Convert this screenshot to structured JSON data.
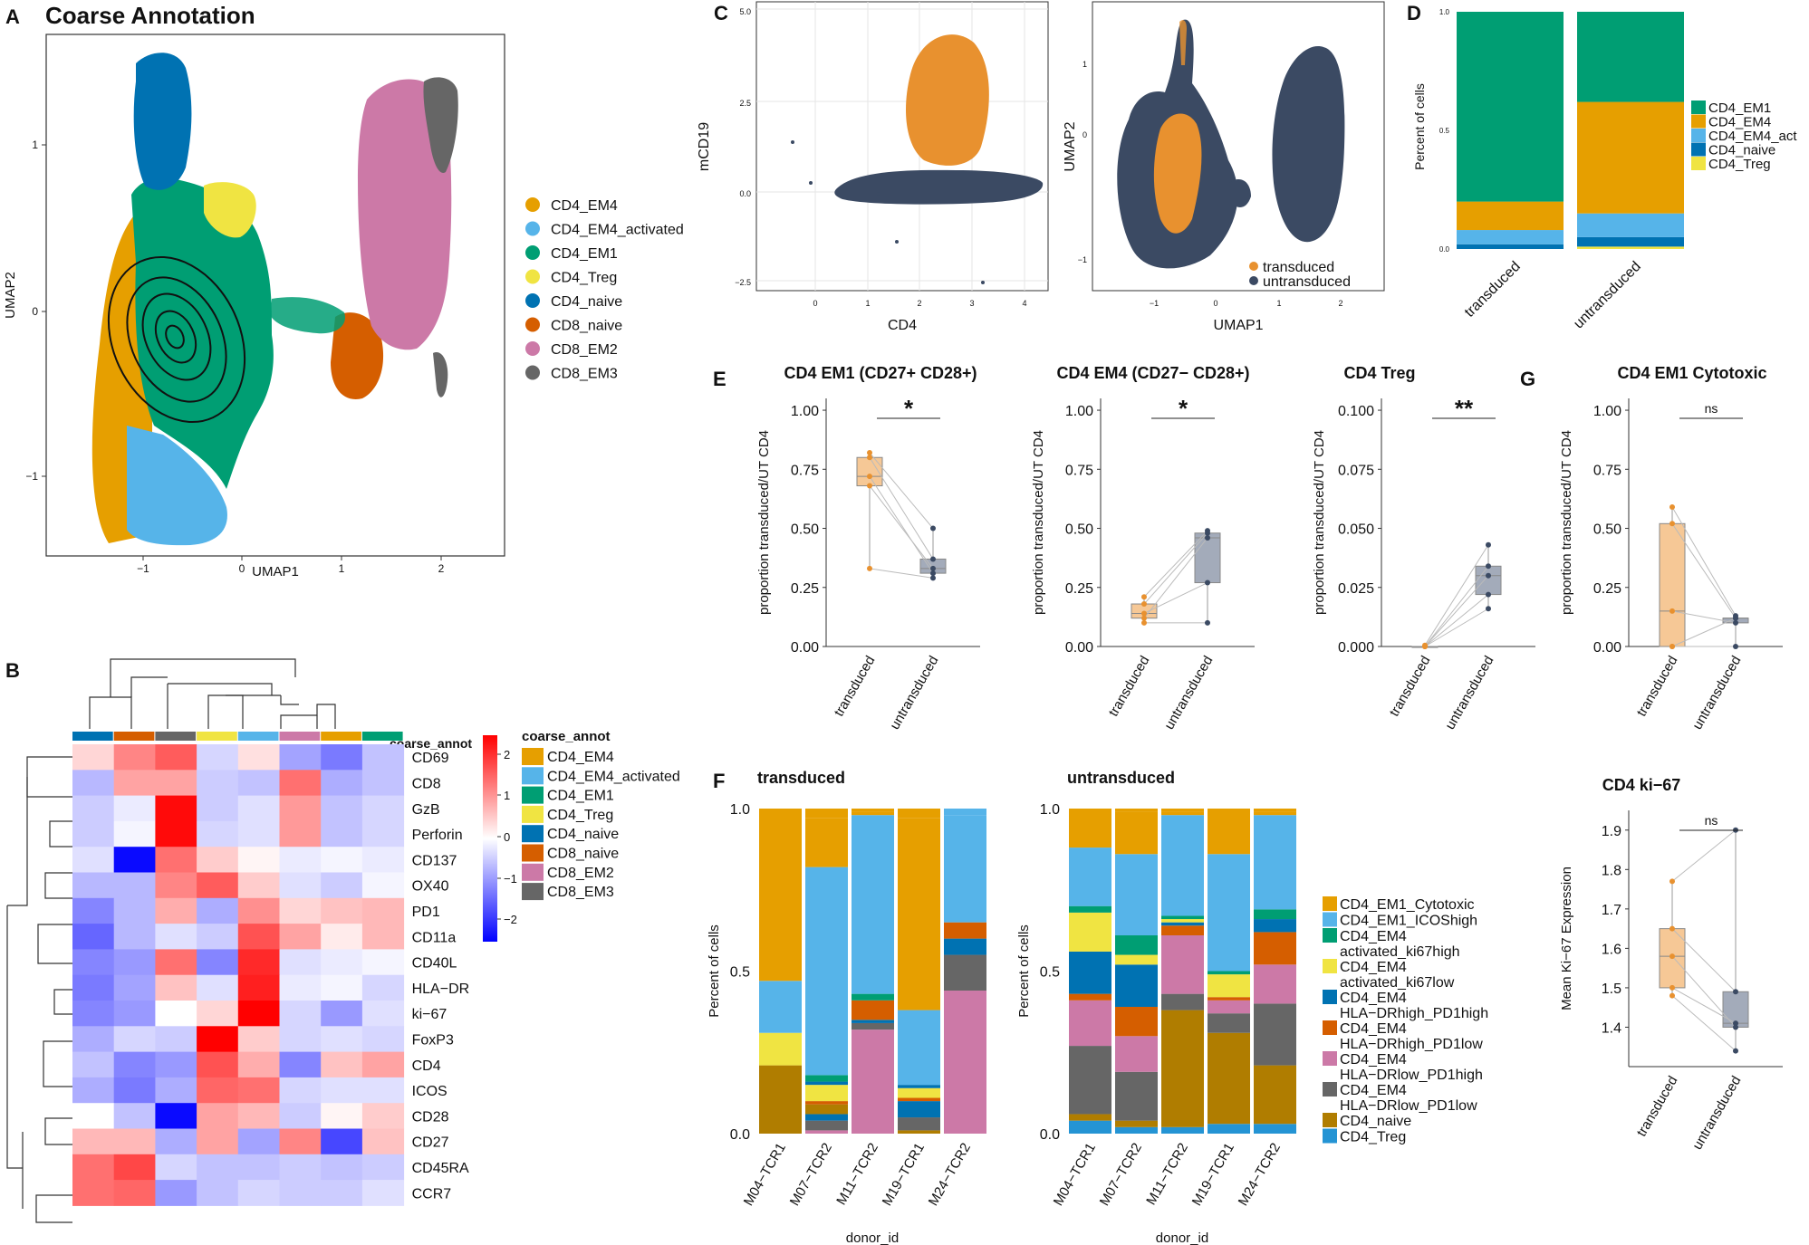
{
  "colors": {
    "CD4_EM4": "#E69F00",
    "CD4_EM4_activated": "#56B4E9",
    "CD4_EM1": "#009E73",
    "CD4_Treg": "#F0E442",
    "CD4_naive": "#0072B2",
    "CD8_naive": "#D55E00",
    "CD8_EM2": "#CC79A7",
    "CD8_EM3": "#666666",
    "naive_brown": "#B07D00",
    "transduced": "#E8912F",
    "untransduced": "#3B4A63"
  },
  "panel_letters": {
    "A": "A",
    "B": "B",
    "C": "C",
    "D": "D",
    "E": "E",
    "F": "F",
    "G": "G"
  },
  "chart_data": [
    {
      "panel": "A",
      "type": "scatter",
      "title": "Coarse Annotation",
      "xlabel": "UMAP1",
      "ylabel": "UMAP2",
      "xticks": [
        "−1",
        "0",
        "1",
        "2"
      ],
      "yticks": [
        "1",
        "0",
        "−1"
      ],
      "legend": [
        "CD4_EM4",
        "CD4_EM4_activated",
        "CD4_EM1",
        "CD4_Treg",
        "CD4_naive",
        "CD8_naive",
        "CD8_EM2",
        "CD8_EM3"
      ]
    },
    {
      "panel": "B",
      "type": "heatmap",
      "legend_title": "coarse_annot",
      "col_header": "coarse_annot",
      "columns": [
        "CD4_naive",
        "CD8_naive",
        "CD8_EM3",
        "CD4_Treg",
        "CD4_EM4_activated",
        "CD8_EM2",
        "CD4_EM4",
        "CD4_EM1"
      ],
      "rows": [
        "CD69",
        "CD8",
        "GzB",
        "Perforin",
        "CD137",
        "OX40",
        "PD1",
        "CD11a",
        "CD40L",
        "HLA−DR",
        "ki−67",
        "FoxP3",
        "CD4",
        "ICOS",
        "CD28",
        "CD27",
        "CD45RA",
        "CCR7"
      ],
      "values": [
        [
          0.4,
          1.2,
          1.6,
          -0.4,
          0.3,
          -0.9,
          -1.3,
          -0.6
        ],
        [
          -0.7,
          0.9,
          0.9,
          -0.5,
          -0.6,
          1.4,
          -0.8,
          -0.6
        ],
        [
          -0.5,
          -0.2,
          2.4,
          -0.5,
          -0.3,
          1.0,
          -0.6,
          -0.4
        ],
        [
          -0.5,
          -0.1,
          2.4,
          -0.4,
          -0.3,
          1.0,
          -0.6,
          -0.4
        ],
        [
          -0.3,
          -2.4,
          1.4,
          0.5,
          0.1,
          -0.2,
          -0.1,
          -0.2
        ],
        [
          -0.7,
          -0.7,
          1.2,
          1.6,
          0.5,
          -0.3,
          -0.5,
          -0.1
        ],
        [
          -1.2,
          -0.7,
          0.8,
          -0.8,
          1.1,
          0.4,
          0.6,
          0.7
        ],
        [
          -1.5,
          -0.7,
          -0.3,
          -0.5,
          1.7,
          0.9,
          0.2,
          0.7
        ],
        [
          -1.2,
          -1.0,
          1.4,
          -1.2,
          2.1,
          -0.3,
          -0.2,
          -0.1
        ],
        [
          -1.3,
          -0.9,
          0.6,
          -0.3,
          2.2,
          -0.2,
          -0.1,
          -0.4
        ],
        [
          -1.2,
          -1.0,
          0.0,
          0.4,
          2.5,
          -0.4,
          -1.0,
          -0.3
        ],
        [
          -0.8,
          -0.4,
          -0.5,
          2.6,
          0.5,
          -0.4,
          -0.3,
          -0.4
        ],
        [
          -0.6,
          -1.2,
          -1.0,
          1.7,
          0.8,
          -1.2,
          0.6,
          0.9
        ],
        [
          -0.8,
          -1.3,
          -0.8,
          1.5,
          1.4,
          -0.4,
          -0.3,
          -0.3
        ],
        [
          0.0,
          -0.6,
          -2.4,
          0.9,
          0.7,
          -0.5,
          0.1,
          0.5
        ],
        [
          0.7,
          0.7,
          -0.8,
          0.9,
          -0.9,
          1.2,
          -1.8,
          0.6
        ],
        [
          1.4,
          1.8,
          -0.4,
          -0.6,
          -0.6,
          -0.5,
          -0.6,
          -0.5
        ],
        [
          1.4,
          1.5,
          -1.0,
          -0.6,
          -0.4,
          -0.5,
          -0.5,
          -0.3
        ]
      ],
      "scale_ticks": [
        "2",
        "1",
        "0",
        "−1",
        "−2"
      ],
      "scale_range": [
        -2.5,
        2.5
      ]
    },
    {
      "panel": "C-left",
      "type": "scatter",
      "xlabel": "CD4",
      "ylabel": "mCD19",
      "xticks": [
        "0",
        "1",
        "2",
        "3",
        "4"
      ],
      "yticks": [
        "5.0",
        "2.5",
        "0.0",
        "−2.5"
      ]
    },
    {
      "panel": "C-right",
      "type": "scatter",
      "xlabel": "UMAP1",
      "ylabel": "UMAP2",
      "xticks": [
        "−1",
        "0",
        "1",
        "2"
      ],
      "yticks": [
        "1",
        "0",
        "−1"
      ],
      "legend": [
        "transduced",
        "untransduced"
      ]
    },
    {
      "panel": "D",
      "type": "bar",
      "ylabel": "Percent of cells",
      "categories": [
        "transduced",
        "untransduced"
      ],
      "yticks": [
        "1.0",
        "0.5",
        "0.0"
      ],
      "legend": [
        "CD4_EM1",
        "CD4_EM4",
        "CD4_EM4_act",
        "CD4_naive",
        "CD4_Treg"
      ],
      "series": [
        {
          "name": "CD4_Treg",
          "values": [
            0,
            0.01
          ]
        },
        {
          "name": "CD4_naive",
          "values": [
            0.02,
            0.04
          ]
        },
        {
          "name": "CD4_EM4_act",
          "values": [
            0.06,
            0.1
          ]
        },
        {
          "name": "CD4_EM4",
          "values": [
            0.12,
            0.47
          ]
        },
        {
          "name": "CD4_EM1",
          "values": [
            0.8,
            0.38
          ]
        }
      ]
    },
    {
      "panel": "E1",
      "type": "box",
      "title": "CD4 EM1 (CD27+ CD28+)",
      "ylabel": "proportion transduced/UT CD4",
      "sig": "*",
      "ylim": [
        0,
        1.05
      ],
      "yticks": [
        "1.00",
        "0.75",
        "0.50",
        "0.25",
        "0.00"
      ],
      "categories": [
        "transduced",
        "untransduced"
      ],
      "transduced": [
        0.33,
        0.68,
        0.72,
        0.8,
        0.82
      ],
      "untransduced": [
        0.29,
        0.31,
        0.33,
        0.37,
        0.5
      ]
    },
    {
      "panel": "E2",
      "type": "box",
      "title": "CD4 EM4 (CD27− CD28+)",
      "ylabel": "proportion transduced/UT CD4",
      "sig": "*",
      "ylim": [
        0,
        1.05
      ],
      "yticks": [
        "1.00",
        "0.75",
        "0.50",
        "0.25",
        "0.00"
      ],
      "categories": [
        "transduced",
        "untransduced"
      ],
      "transduced": [
        0.1,
        0.12,
        0.14,
        0.18,
        0.21
      ],
      "untransduced": [
        0.1,
        0.27,
        0.46,
        0.48,
        0.49
      ]
    },
    {
      "panel": "E3",
      "type": "box",
      "title": "CD4 Treg",
      "ylabel": "proportion transduced/UT CD4",
      "sig": "**",
      "ylim": [
        0,
        0.105
      ],
      "yticks": [
        "0.100",
        "0.075",
        "0.050",
        "0.025",
        "0.000"
      ],
      "categories": [
        "transduced",
        "untransduced"
      ],
      "transduced": [
        0,
        0,
        0,
        0,
        0.0005
      ],
      "untransduced": [
        0.016,
        0.022,
        0.03,
        0.034,
        0.043
      ]
    },
    {
      "panel": "G1",
      "type": "box",
      "title": "CD4 EM1 Cytotoxic",
      "ylabel": "proportion transduced/UT CD4",
      "sig": "ns",
      "ylim": [
        0,
        1.05
      ],
      "yticks": [
        "1.00",
        "0.75",
        "0.50",
        "0.25",
        "0.00"
      ],
      "categories": [
        "transduced",
        "untransduced"
      ],
      "transduced": [
        0.0,
        0.0,
        0.15,
        0.52,
        0.59
      ],
      "untransduced": [
        0.0,
        0.1,
        0.12,
        0.12,
        0.13
      ]
    },
    {
      "panel": "G2",
      "type": "box",
      "title": "CD4 ki−67",
      "ylabel": "Mean Ki−67 Expression",
      "sig": "ns",
      "ylim": [
        1.3,
        1.95
      ],
      "yticks": [
        "1.9",
        "1.8",
        "1.7",
        "1.6",
        "1.5",
        "1.4"
      ],
      "categories": [
        "transduced",
        "untransduced"
      ],
      "transduced": [
        1.48,
        1.5,
        1.58,
        1.65,
        1.77
      ],
      "untransduced": [
        1.34,
        1.4,
        1.41,
        1.49,
        1.9
      ]
    },
    {
      "panel": "F",
      "type": "bar",
      "ylabel": "Percent of cells",
      "xlabel": "donor_id",
      "yticks": [
        "1.0",
        "0.5",
        "0.0"
      ],
      "categories": [
        "M04−TCR1",
        "M07−TCR2",
        "M11−TCR2",
        "M19−TCR1",
        "M24−TCR2"
      ],
      "legend": [
        "CD4_EM1_Cytotoxic",
        "CD4_EM1_ICOShigh",
        "CD4_EM4 activated_ki67high",
        "CD4_EM4 activated_ki67low",
        "CD4_EM4 HLA−DRhigh_PD1high",
        "CD4_EM4 HLA−DRhigh_PD1low",
        "CD4_EM4 HLA−DRlow_PD1high",
        "CD4_EM4 HLA−DRlow_PD1low",
        "CD4_naive",
        "CD4_Treg"
      ],
      "facets": [
        {
          "title": "transduced",
          "stacks": [
            [
              [
                8,
                0.21
              ],
              [
                3,
                0.1
              ],
              [
                1,
                0.16
              ],
              [
                0,
                0.53
              ]
            ],
            [
              [
                6,
                0.01
              ],
              [
                7,
                0.03
              ],
              [
                4,
                0.02
              ],
              [
                8,
                0.03
              ],
              [
                5,
                0.01
              ],
              [
                3,
                0.05
              ],
              [
                4,
                0.01
              ],
              [
                2,
                0.02
              ],
              [
                1,
                0.64
              ],
              [
                0,
                0.15
              ]
            ],
            [
              [
                6,
                0.32
              ],
              [
                7,
                0.02
              ],
              [
                4,
                0.01
              ],
              [
                5,
                0.06
              ],
              [
                2,
                0.02
              ],
              [
                1,
                0.55
              ],
              [
                0,
                0.01
              ]
            ],
            [
              [
                8,
                0.01
              ],
              [
                7,
                0.04
              ],
              [
                4,
                0.05
              ],
              [
                5,
                0.01
              ],
              [
                3,
                0.03
              ],
              [
                4,
                0.01
              ],
              [
                1,
                0.23
              ],
              [
                0,
                0.59
              ]
            ],
            [
              [
                6,
                0.44
              ],
              [
                7,
                0.11
              ],
              [
                4,
                0.05
              ],
              [
                5,
                0.05
              ],
              [
                1,
                0.33
              ]
            ]
          ]
        },
        {
          "title": "untransduced",
          "stacks": [
            [
              [
                9,
                0.04
              ],
              [
                8,
                0.02
              ],
              [
                7,
                0.21
              ],
              [
                6,
                0.14
              ],
              [
                5,
                0.02
              ],
              [
                4,
                0.13
              ],
              [
                3,
                0.12
              ],
              [
                2,
                0.02
              ],
              [
                1,
                0.18
              ],
              [
                0,
                0.12
              ]
            ],
            [
              [
                9,
                0.02
              ],
              [
                8,
                0.02
              ],
              [
                7,
                0.15
              ],
              [
                6,
                0.11
              ],
              [
                5,
                0.09
              ],
              [
                4,
                0.13
              ],
              [
                3,
                0.03
              ],
              [
                2,
                0.06
              ],
              [
                1,
                0.25
              ],
              [
                0,
                0.13
              ]
            ],
            [
              [
                9,
                0.02
              ],
              [
                8,
                0.36
              ],
              [
                7,
                0.05
              ],
              [
                6,
                0.18
              ],
              [
                5,
                0.03
              ],
              [
                4,
                0.01
              ],
              [
                3,
                0.01
              ],
              [
                2,
                0.01
              ],
              [
                1,
                0.31
              ],
              [
                0,
                0.01
              ]
            ],
            [
              [
                9,
                0.03
              ],
              [
                8,
                0.28
              ],
              [
                7,
                0.06
              ],
              [
                6,
                0.04
              ],
              [
                5,
                0.01
              ],
              [
                3,
                0.07
              ],
              [
                2,
                0.01
              ],
              [
                1,
                0.36
              ],
              [
                0,
                0.14
              ]
            ],
            [
              [
                9,
                0.03
              ],
              [
                8,
                0.18
              ],
              [
                7,
                0.19
              ],
              [
                6,
                0.12
              ],
              [
                5,
                0.1
              ],
              [
                4,
                0.04
              ],
              [
                2,
                0.03
              ],
              [
                1,
                0.29
              ],
              [
                0,
                0.01
              ]
            ]
          ]
        }
      ]
    }
  ]
}
